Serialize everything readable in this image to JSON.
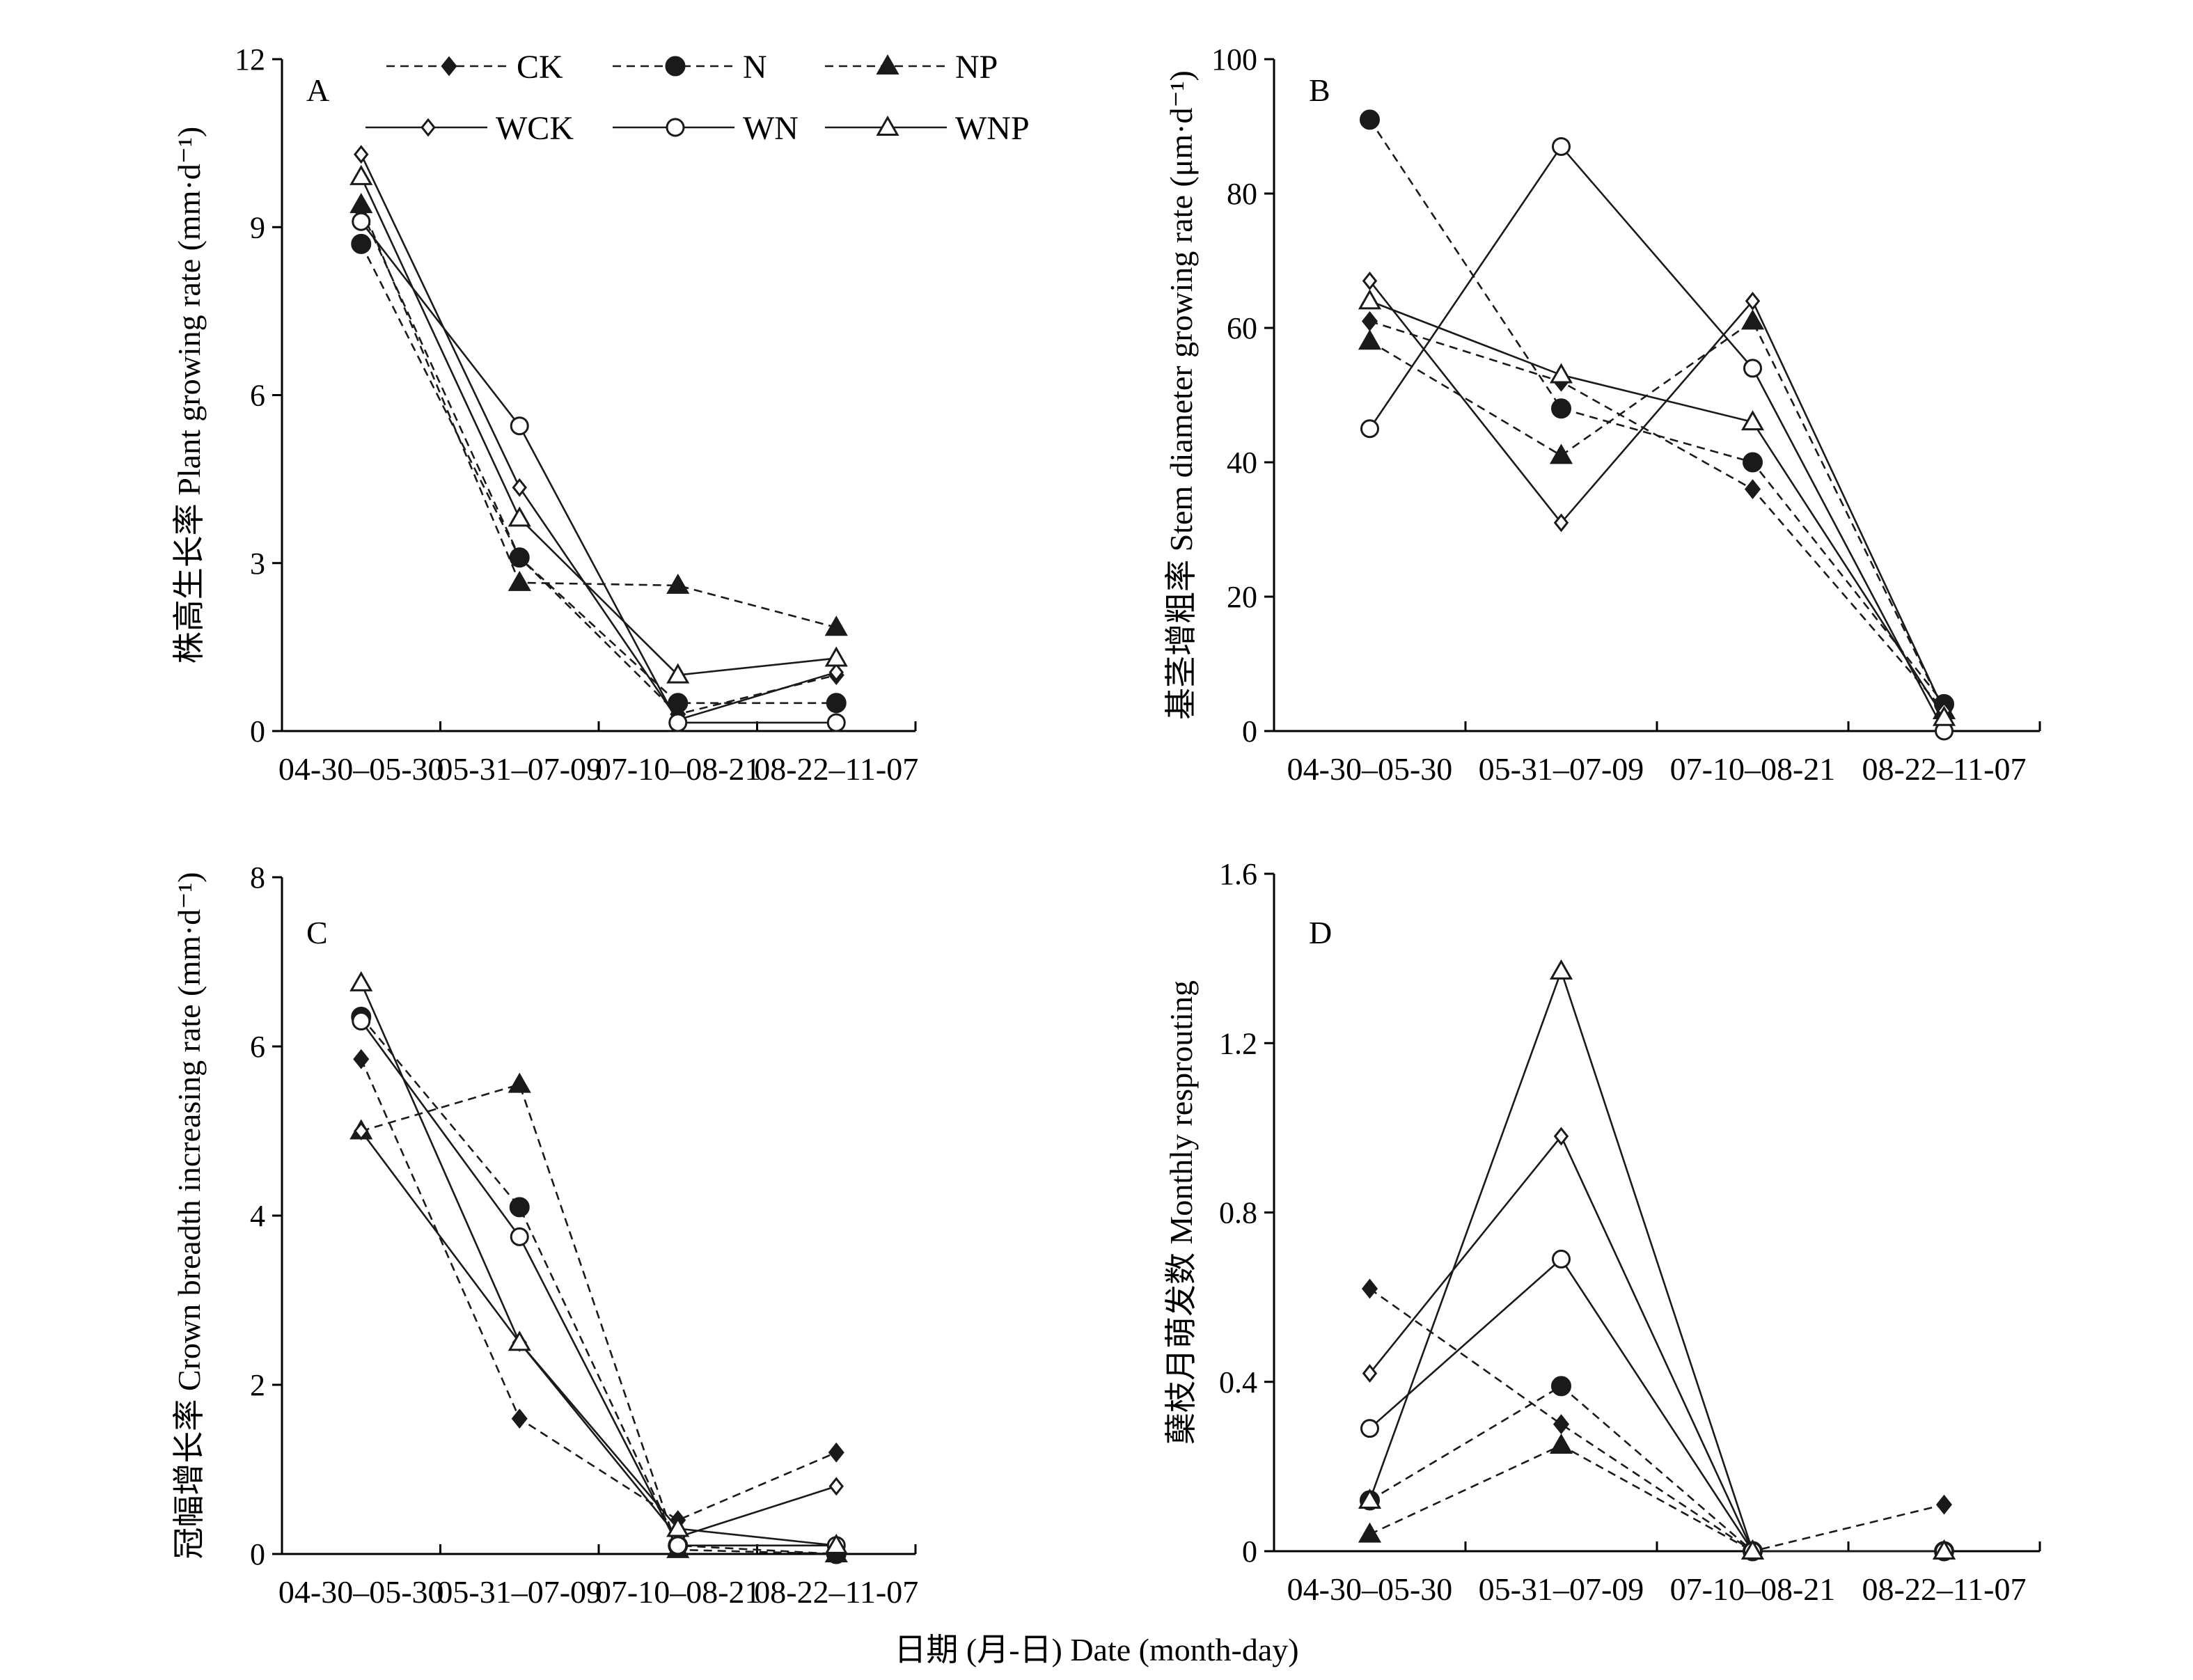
{
  "chart_data": [
    {
      "panel": "A",
      "type": "line",
      "categories": [
        "04-30–05-30",
        "05-31–07-09",
        "07-10–08-21",
        "08-22–11-07"
      ],
      "ylabel": "株高生长率 Plant growing rate (mm·d⁻¹)",
      "ylim": [
        0,
        12
      ],
      "yticks": [
        "0",
        "3",
        "6",
        "9",
        "12"
      ],
      "series": [
        {
          "name": "CK",
          "values": [
            9.3,
            3.1,
            0.3,
            1.0
          ]
        },
        {
          "name": "N",
          "values": [
            8.7,
            3.1,
            0.5,
            0.5
          ]
        },
        {
          "name": "NP",
          "values": [
            9.4,
            2.65,
            2.6,
            1.85
          ]
        },
        {
          "name": "WCK",
          "values": [
            10.3,
            4.35,
            0.2,
            1.05
          ]
        },
        {
          "name": "WN",
          "values": [
            9.1,
            5.45,
            0.15,
            0.15
          ]
        },
        {
          "name": "WNP",
          "values": [
            9.9,
            3.8,
            1.0,
            1.3
          ]
        }
      ]
    },
    {
      "panel": "B",
      "type": "line",
      "categories": [
        "04-30–05-30",
        "05-31–07-09",
        "07-10–08-21",
        "08-22–11-07"
      ],
      "ylabel": "基茎增粗率 Stem diameter growing rate (μm·d⁻¹)",
      "ylim": [
        0,
        100
      ],
      "yticks": [
        "0",
        "20",
        "40",
        "60",
        "80",
        "100"
      ],
      "series": [
        {
          "name": "CK",
          "values": [
            61,
            52,
            36,
            3
          ]
        },
        {
          "name": "N",
          "values": [
            91,
            48,
            40,
            4
          ]
        },
        {
          "name": "NP",
          "values": [
            58,
            41,
            61,
            3
          ]
        },
        {
          "name": "WCK",
          "values": [
            67,
            31,
            64,
            3
          ]
        },
        {
          "name": "WN",
          "values": [
            45,
            87,
            54,
            0
          ]
        },
        {
          "name": "WNP",
          "values": [
            64,
            53,
            46,
            2
          ]
        }
      ]
    },
    {
      "panel": "C",
      "type": "line",
      "categories": [
        "04-30–05-30",
        "05-31–07-09",
        "07-10–08-21",
        "08-22–11-07"
      ],
      "ylabel": "冠幅增长率 Crown breadth increasing rate (mm·d⁻¹)",
      "ylim": [
        0,
        8
      ],
      "yticks": [
        "0",
        "2",
        "4",
        "6",
        "8"
      ],
      "series": [
        {
          "name": "CK",
          "values": [
            5.85,
            1.6,
            0.4,
            1.2
          ]
        },
        {
          "name": "N",
          "values": [
            6.35,
            4.1,
            0.1,
            0.0
          ]
        },
        {
          "name": "NP",
          "values": [
            5.0,
            5.55,
            0.05,
            0.0
          ]
        },
        {
          "name": "WCK",
          "values": [
            5.0,
            2.5,
            0.2,
            0.8
          ]
        },
        {
          "name": "WN",
          "values": [
            6.3,
            3.75,
            0.1,
            0.1
          ]
        },
        {
          "name": "WNP",
          "values": [
            6.75,
            2.5,
            0.3,
            0.1
          ]
        }
      ]
    },
    {
      "panel": "D",
      "type": "line",
      "categories": [
        "04-30–05-30",
        "05-31–07-09",
        "07-10–08-21",
        "08-22–11-07"
      ],
      "ylabel": "蘖枝月萌发数 Monthly resprouting",
      "ylim": [
        0,
        1.6
      ],
      "yticks": [
        "0",
        "0.4",
        "0.8",
        "1.2",
        "1.6"
      ],
      "series": [
        {
          "name": "CK",
          "values": [
            0.62,
            0.3,
            0.0,
            0.11
          ]
        },
        {
          "name": "N",
          "values": [
            0.12,
            0.39,
            0.0,
            0.0
          ]
        },
        {
          "name": "NP",
          "values": [
            0.04,
            0.25,
            0.0,
            0.0
          ]
        },
        {
          "name": "WCK",
          "values": [
            0.42,
            0.98,
            0.0,
            0.0
          ]
        },
        {
          "name": "WN",
          "values": [
            0.29,
            0.69,
            0.0,
            0.0
          ]
        },
        {
          "name": "WNP",
          "values": [
            0.12,
            1.37,
            0.0,
            0.0
          ]
        }
      ]
    }
  ],
  "series_styles": {
    "CK": {
      "marker": "diamond",
      "filled": true,
      "dashed": true
    },
    "N": {
      "marker": "circle",
      "filled": true,
      "dashed": true
    },
    "NP": {
      "marker": "triangle",
      "filled": true,
      "dashed": true
    },
    "WCK": {
      "marker": "diamond",
      "filled": false,
      "dashed": false
    },
    "WN": {
      "marker": "circle",
      "filled": false,
      "dashed": false
    },
    "WNP": {
      "marker": "triangle",
      "filled": false,
      "dashed": false
    }
  },
  "xlabel": "日期 (月-日) Date (month-day)",
  "legend": [
    "CK",
    "N",
    "NP",
    "WCK",
    "WN",
    "WNP"
  ],
  "colors": {
    "line": "#1a1a1a",
    "background": "#ffffff"
  }
}
